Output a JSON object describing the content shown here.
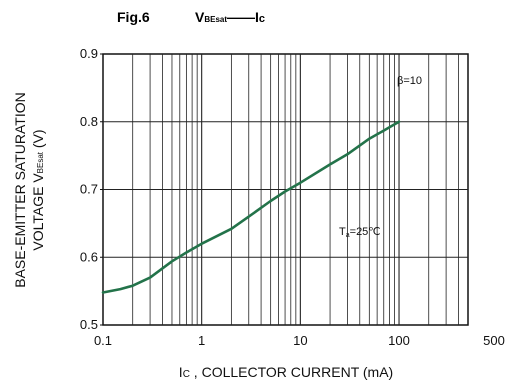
{
  "header": {
    "fig_label": "Fig.6",
    "param_main": "V",
    "param_sub": "BEsat",
    "dash": "——",
    "param_right_main": "I",
    "param_right_sub": "c"
  },
  "chart_data": {
    "type": "line",
    "title": "",
    "x_scale": "log",
    "xlim": [
      0.1,
      500
    ],
    "ylim": [
      0.5,
      0.9
    ],
    "x_ticks": [
      0.1,
      1,
      10,
      100,
      500
    ],
    "x_tick_labels": [
      "0.1",
      "1",
      "10",
      "100",
      "500"
    ],
    "y_ticks": [
      0.5,
      0.6,
      0.7,
      0.8,
      0.9
    ],
    "y_tick_labels": [
      "0.5",
      "0.6",
      "0.7",
      "0.8",
      "0.9"
    ],
    "grid": true,
    "xlabel": {
      "prefix_main": "I",
      "prefix_sub": "C",
      "rest": " , COLLECTOR CURRENT (mA)"
    },
    "ylabel": {
      "line1": "BASE-EMITTER SATURATION",
      "line2_main": "VOLTAGE V",
      "line2_sub": "BEsat",
      "line2_rest": " (V)"
    },
    "annotations": {
      "beta": "β=10",
      "temp_main": "T",
      "temp_sub": "a",
      "temp_rest": "=25℃"
    },
    "series": [
      {
        "color": "#23734a",
        "x": [
          0.1,
          0.15,
          0.2,
          0.3,
          0.5,
          0.7,
          1,
          2,
          3,
          5,
          7,
          10,
          20,
          30,
          50,
          70,
          100
        ],
        "y": [
          0.548,
          0.553,
          0.558,
          0.57,
          0.594,
          0.607,
          0.62,
          0.642,
          0.66,
          0.683,
          0.697,
          0.71,
          0.737,
          0.752,
          0.775,
          0.787,
          0.8
        ]
      }
    ]
  }
}
